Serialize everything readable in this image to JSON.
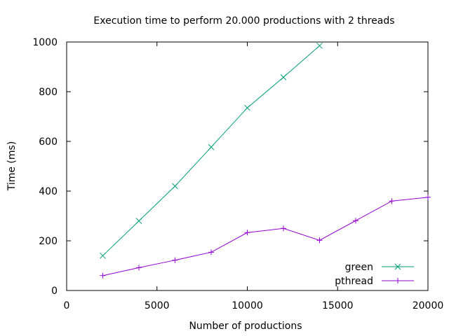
{
  "chart_data": {
    "type": "line",
    "title": "Execution time to perform 20.000 productions with 2 threads",
    "xlabel": "Number of productions",
    "ylabel": "Time (ms)",
    "xlim": [
      0,
      20000
    ],
    "ylim": [
      0,
      1000
    ],
    "xticks": [
      "0",
      "5000",
      "10000",
      "15000",
      "20000"
    ],
    "yticks": [
      "0",
      "200",
      "400",
      "600",
      "800",
      "1000"
    ],
    "grid": false,
    "legend_position": "bottom-right",
    "series": [
      {
        "name": "green",
        "color": "#009e73",
        "marker": "x",
        "x": [
          2000,
          4000,
          6000,
          8000,
          10000,
          12000,
          14000
        ],
        "y": [
          140,
          280,
          420,
          577,
          735,
          858,
          985
        ]
      },
      {
        "name": "pthread",
        "color": "#9400d3",
        "marker": "+",
        "x": [
          2000,
          4000,
          6000,
          8000,
          10000,
          12000,
          14000,
          16000,
          18000,
          20000
        ],
        "y": [
          60,
          92,
          122,
          154,
          233,
          250,
          202,
          281,
          360,
          375
        ]
      }
    ]
  }
}
